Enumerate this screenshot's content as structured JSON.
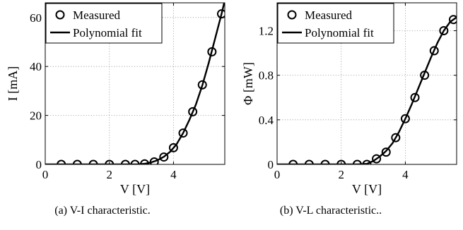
{
  "chart_data": [
    {
      "type": "line",
      "caption": "(a) V-I characteristic.",
      "xlabel": "V [V]",
      "ylabel": "I [mA]",
      "xlim": [
        0,
        5.6
      ],
      "ylim": [
        0,
        66
      ],
      "xticks": [
        0,
        2,
        4
      ],
      "yticks": [
        0,
        20,
        40,
        60
      ],
      "xtick_labels": [
        "0",
        "2",
        "4"
      ],
      "ytick_labels": [
        "0",
        "20",
        "40",
        "60"
      ],
      "grid": true,
      "legend_position": "top-left",
      "series": [
        {
          "name": "Measured",
          "style": "markers",
          "x": [
            0.5,
            1.0,
            1.5,
            2.0,
            2.5,
            2.8,
            3.1,
            3.4,
            3.7,
            4.0,
            4.3,
            4.6,
            4.9,
            5.2,
            5.5
          ],
          "y": [
            0,
            0,
            0,
            0,
            0,
            0,
            0.2,
            1.0,
            3.0,
            6.8,
            12.8,
            21.5,
            32.5,
            46.0,
            61.5
          ]
        },
        {
          "name": "Polynomial fit",
          "style": "line",
          "x": [
            0.0,
            2.0,
            2.6,
            2.9,
            3.1,
            3.3,
            3.5,
            3.7,
            3.9,
            4.1,
            4.3,
            4.5,
            4.7,
            4.9,
            5.1,
            5.3,
            5.5,
            5.6
          ],
          "y": [
            0,
            0,
            0,
            0.05,
            0.25,
            0.8,
            1.7,
            3.1,
            5.2,
            8.3,
            12.8,
            18.3,
            24.5,
            32.3,
            41.5,
            51.5,
            61.5,
            67.0
          ]
        }
      ]
    },
    {
      "type": "line",
      "caption": "(b) V-L characteristic..",
      "xlabel": "V [V]",
      "ylabel": "Φ [mW]",
      "xlim": [
        0,
        5.6
      ],
      "ylim": [
        0,
        1.45
      ],
      "xticks": [
        0,
        2,
        4
      ],
      "yticks": [
        0,
        0.4,
        0.8,
        1.2
      ],
      "xtick_labels": [
        "0",
        "2",
        "4"
      ],
      "ytick_labels": [
        "0",
        "0.4",
        "0.8",
        "1.2"
      ],
      "grid": true,
      "legend_position": "top-left",
      "series": [
        {
          "name": "Measured",
          "style": "markers",
          "x": [
            0.5,
            1.0,
            1.5,
            2.0,
            2.5,
            2.8,
            3.1,
            3.4,
            3.7,
            4.0,
            4.3,
            4.6,
            4.9,
            5.2,
            5.5
          ],
          "y": [
            0,
            0,
            0,
            0,
            0,
            0,
            0.05,
            0.11,
            0.24,
            0.41,
            0.6,
            0.8,
            1.02,
            1.2,
            1.3
          ]
        },
        {
          "name": "Polynomial fit",
          "style": "line",
          "x": [
            0.0,
            2.0,
            2.5,
            2.8,
            3.0,
            3.2,
            3.4,
            3.6,
            3.8,
            4.0,
            4.2,
            4.4,
            4.6,
            4.8,
            5.0,
            5.2,
            5.4,
            5.6
          ],
          "y": [
            0,
            0,
            0,
            0.005,
            0.03,
            0.07,
            0.12,
            0.19,
            0.29,
            0.41,
            0.54,
            0.68,
            0.82,
            0.96,
            1.09,
            1.2,
            1.28,
            1.32
          ]
        }
      ]
    }
  ]
}
